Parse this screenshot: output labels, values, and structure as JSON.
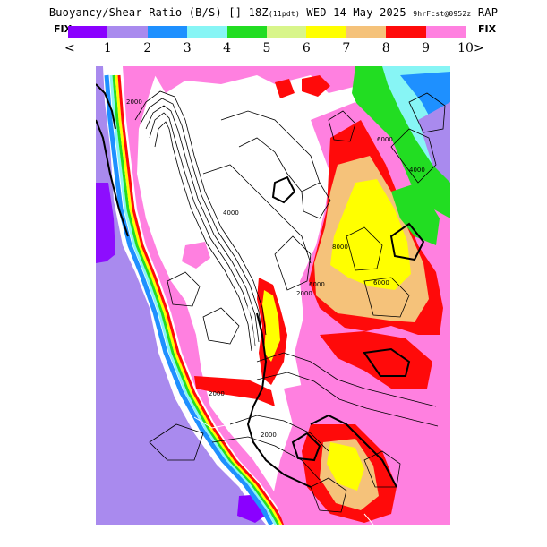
{
  "header": {
    "title_main": "Buoyancy/Shear Ratio (B/S) [] 18Z",
    "title_run": "(11pdt)",
    "title_date": "WED 14 May 2025",
    "title_fcst": "9hrFcst@0952z",
    "title_model": "RAP"
  },
  "legend": {
    "fix_left": "FIX",
    "fix_right": "FIX",
    "prev_arrow": "<",
    "next_arrow": ">",
    "colors": [
      "#8a00ff",
      "#a98aee",
      "#1e90ff",
      "#87f5f5",
      "#22dd22",
      "#d8f58a",
      "#ffff00",
      "#f5c27a",
      "#ff0a0a",
      "#ff80e0"
    ],
    "tick_labels": [
      "1",
      "2",
      "3",
      "4",
      "5",
      "6",
      "7",
      "8",
      "9",
      "10"
    ]
  },
  "map": {
    "ocean_color": "#a98aee",
    "contour_labels": [
      "2000",
      "4000",
      "6000",
      "8000",
      "6000",
      "2000",
      "2000",
      "6000",
      "4000",
      "2000"
    ]
  }
}
